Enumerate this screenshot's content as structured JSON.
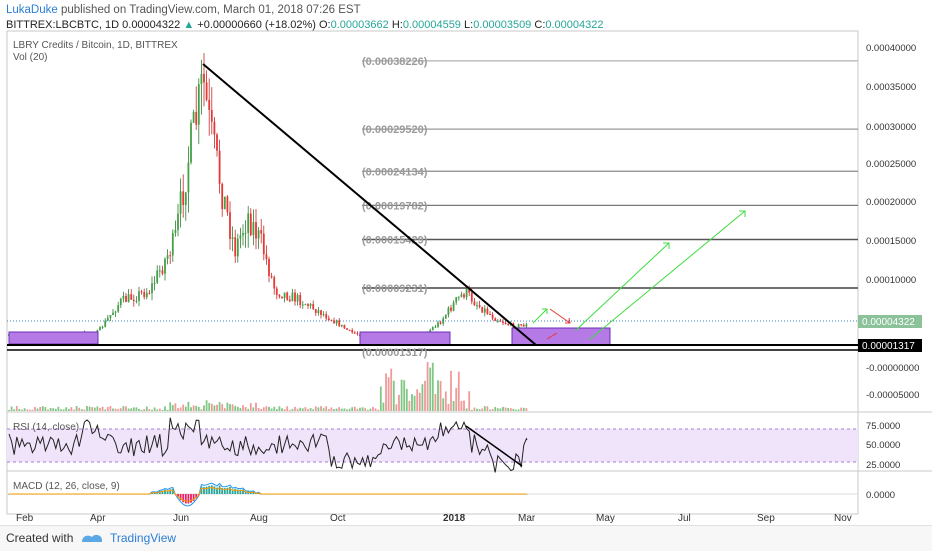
{
  "header": {
    "author": "LukaDuke",
    "published": "published on TradingView.com, March 01, 2018 07:26 EST",
    "symbol": "BITTREX:LBCBTC, 1D",
    "last": "0.00004322",
    "change_arrow": "▲",
    "change": "+0.00000660 (+18.02%)",
    "o_label": "O:",
    "o_value": "0.00003662",
    "h_label": "H:",
    "h_value": "0.00004559",
    "l_label": "L:",
    "l_value": "0.00003509",
    "c_label": "C:",
    "c_value": "0.00004322"
  },
  "chart_data": {
    "type": "candlestick",
    "title": "LBRY Credits / Bitcoin, 1D, BITTREX",
    "vol_label": "Vol (20)",
    "x_ticks": [
      "Feb",
      "Apr",
      "Jun",
      "Aug",
      "Oct",
      "2018",
      "Mar",
      "May",
      "Jul",
      "Sep",
      "Nov"
    ],
    "y_ticks": [
      "0.00040000",
      "0.00035000",
      "0.00030000",
      "0.00025000",
      "0.00020000",
      "0.00015000",
      "0.00010000"
    ],
    "price_tag": "0.00004322",
    "support_tag": "0.00001317",
    "fib_levels": [
      {
        "label": "(0.00038226)",
        "value": 0.00038226,
        "color": "#b0b0b0"
      },
      {
        "label": "(0.00029520)",
        "value": 0.0002952,
        "color": "#9a9a9a"
      },
      {
        "label": "(0.00024134)",
        "value": 0.00024134,
        "color": "#8a8a8a"
      },
      {
        "label": "(0.00019782)",
        "value": 0.00019782,
        "color": "#7a7a7a"
      },
      {
        "label": "(0.00015429)",
        "value": 0.00015429,
        "color": "#555555"
      },
      {
        "label": "(0.00009231)",
        "value": 9.231e-05,
        "color": "#444444"
      },
      {
        "label": "(0.00001317)",
        "value": 1.317e-05,
        "color": "#000000"
      }
    ],
    "volume_ticks": [
      "-0.00000000",
      "-0.00005000"
    ],
    "rsi_label": "RSI (14, close)",
    "rsi_ticks": [
      "75.0000",
      "50.0000",
      "25.0000"
    ],
    "macd_label": "MACD (12, 26, close, 9)",
    "macd_ticks": [
      "0.0000"
    ]
  },
  "footer": {
    "created": "Created with",
    "brand": "TradingView"
  }
}
